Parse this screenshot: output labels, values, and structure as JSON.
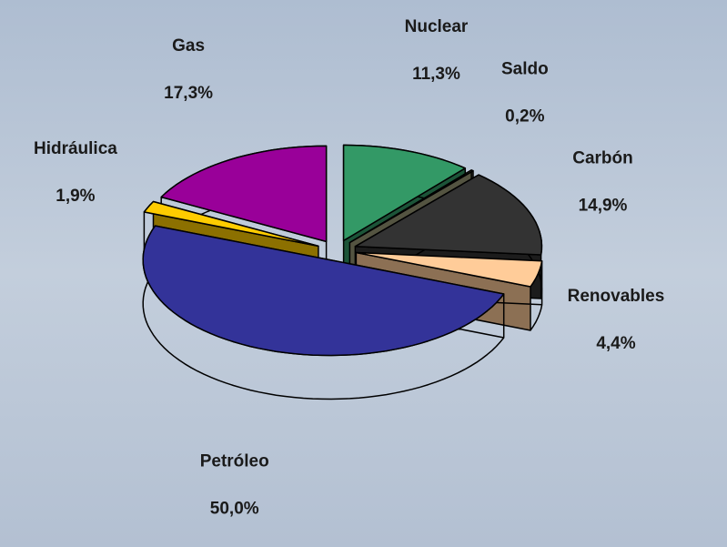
{
  "chart_data": {
    "type": "pie",
    "categories": [
      "Nuclear",
      "Saldo",
      "Carbón",
      "Renovables",
      "Petróleo",
      "Hidráulica",
      "Gas"
    ],
    "values": [
      11.3,
      0.2,
      14.9,
      4.4,
      50.0,
      1.9,
      17.3
    ],
    "value_labels": [
      "11,3%",
      "0,2%",
      "14,9%",
      "4,4%",
      "50,0%",
      "1,9%",
      "17,3%"
    ],
    "colors": [
      "#339966",
      "#999977",
      "#333333",
      "#ffcc99",
      "#333399",
      "#ffcc00",
      "#990099"
    ]
  }
}
